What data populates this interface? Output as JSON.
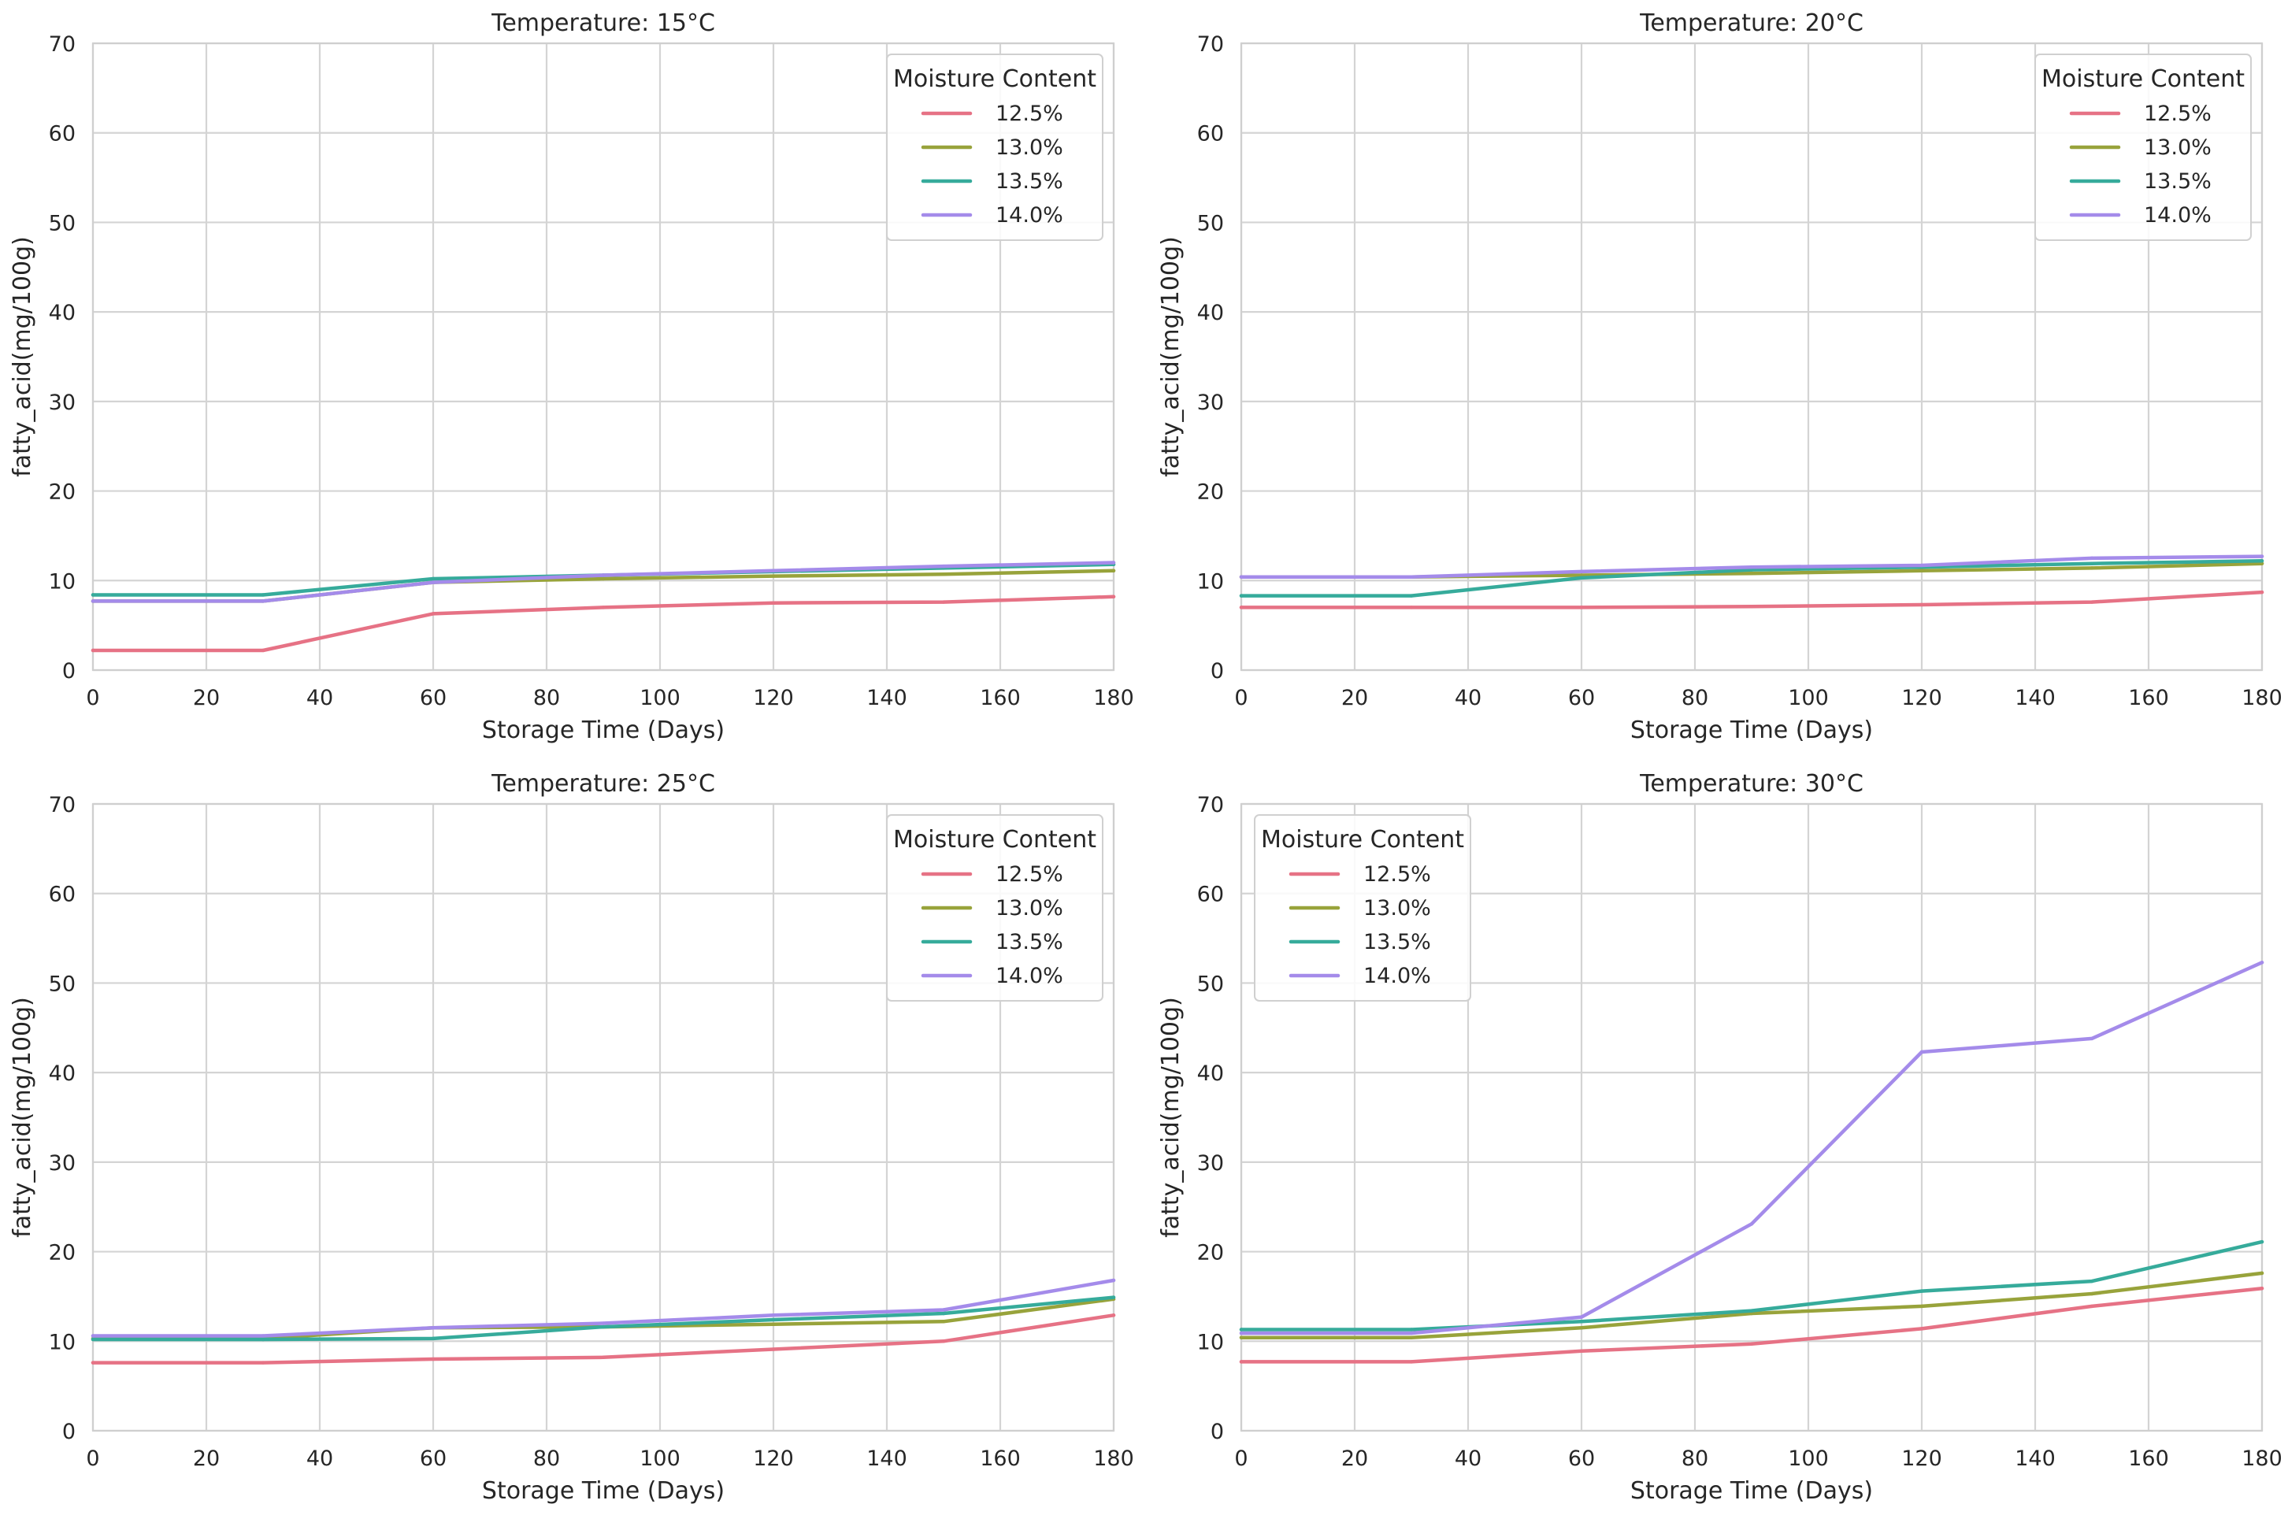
{
  "palette": {
    "12.5%": "#e67285",
    "13.0%": "#98a33b",
    "13.5%": "#36ab9b",
    "14.0%": "#a48bea"
  },
  "chart_data": [
    {
      "type": "line",
      "title": "Temperature: 15°C",
      "xlabel": "Storage Time (Days)",
      "ylabel": "fatty_acid(mg/100g)",
      "xlim": [
        0,
        180
      ],
      "ylim": [
        0,
        70
      ],
      "xticks": [
        0,
        20,
        40,
        60,
        80,
        100,
        120,
        140,
        160,
        180
      ],
      "yticks": [
        0,
        10,
        20,
        30,
        40,
        50,
        60,
        70
      ],
      "grid": true,
      "legend_title": "Moisture Content",
      "legend_position": "top-right",
      "x": [
        0,
        30,
        60,
        90,
        120,
        150,
        180
      ],
      "series": [
        {
          "name": "12.5%",
          "values": [
            2.2,
            2.2,
            6.3,
            7.0,
            7.5,
            7.6,
            8.2
          ]
        },
        {
          "name": "13.0%",
          "values": [
            7.7,
            7.7,
            9.8,
            10.2,
            10.5,
            10.7,
            11.1
          ]
        },
        {
          "name": "13.5%",
          "values": [
            8.4,
            8.4,
            10.2,
            10.6,
            11.0,
            11.4,
            11.8
          ]
        },
        {
          "name": "14.0%",
          "values": [
            7.7,
            7.7,
            9.8,
            10.6,
            11.1,
            11.6,
            12.0
          ]
        }
      ]
    },
    {
      "type": "line",
      "title": "Temperature: 20°C",
      "xlabel": "Storage Time (Days)",
      "ylabel": "fatty_acid(mg/100g)",
      "xlim": [
        0,
        180
      ],
      "ylim": [
        0,
        70
      ],
      "xticks": [
        0,
        20,
        40,
        60,
        80,
        100,
        120,
        140,
        160,
        180
      ],
      "yticks": [
        0,
        10,
        20,
        30,
        40,
        50,
        60,
        70
      ],
      "grid": true,
      "legend_title": "Moisture Content",
      "legend_position": "top-right",
      "x": [
        0,
        30,
        60,
        90,
        120,
        150,
        180
      ],
      "series": [
        {
          "name": "12.5%",
          "values": [
            7.0,
            7.0,
            7.0,
            7.1,
            7.3,
            7.6,
            8.7
          ]
        },
        {
          "name": "13.0%",
          "values": [
            10.4,
            10.4,
            10.6,
            10.8,
            11.1,
            11.4,
            11.9
          ]
        },
        {
          "name": "13.5%",
          "values": [
            8.3,
            8.3,
            10.3,
            11.2,
            11.5,
            11.9,
            12.2
          ]
        },
        {
          "name": "14.0%",
          "values": [
            10.4,
            10.4,
            11.0,
            11.5,
            11.7,
            12.5,
            12.7
          ]
        }
      ]
    },
    {
      "type": "line",
      "title": "Temperature: 25°C",
      "xlabel": "Storage Time (Days)",
      "ylabel": "fatty_acid(mg/100g)",
      "xlim": [
        0,
        180
      ],
      "ylim": [
        0,
        70
      ],
      "xticks": [
        0,
        20,
        40,
        60,
        80,
        100,
        120,
        140,
        160,
        180
      ],
      "yticks": [
        0,
        10,
        20,
        30,
        40,
        50,
        60,
        70
      ],
      "grid": true,
      "legend_title": "Moisture Content",
      "legend_position": "top-right",
      "x": [
        0,
        30,
        60,
        90,
        120,
        150,
        180
      ],
      "series": [
        {
          "name": "12.5%",
          "values": [
            7.6,
            7.6,
            8.0,
            8.2,
            9.1,
            10.0,
            12.9
          ]
        },
        {
          "name": "13.0%",
          "values": [
            10.3,
            10.3,
            11.5,
            11.6,
            11.9,
            12.2,
            14.7
          ]
        },
        {
          "name": "13.5%",
          "values": [
            10.2,
            10.2,
            10.3,
            11.6,
            12.4,
            13.1,
            14.9
          ]
        },
        {
          "name": "14.0%",
          "values": [
            10.6,
            10.6,
            11.5,
            12.0,
            12.9,
            13.5,
            16.8
          ]
        }
      ]
    },
    {
      "type": "line",
      "title": "Temperature: 30°C",
      "xlabel": "Storage Time (Days)",
      "ylabel": "fatty_acid(mg/100g)",
      "xlim": [
        0,
        180
      ],
      "ylim": [
        0,
        70
      ],
      "xticks": [
        0,
        20,
        40,
        60,
        80,
        100,
        120,
        140,
        160,
        180
      ],
      "yticks": [
        0,
        10,
        20,
        30,
        40,
        50,
        60,
        70
      ],
      "grid": true,
      "legend_title": "Moisture Content",
      "legend_position": "top-left",
      "x": [
        0,
        30,
        60,
        90,
        120,
        150,
        180
      ],
      "series": [
        {
          "name": "12.5%",
          "values": [
            7.7,
            7.7,
            8.9,
            9.7,
            11.4,
            13.9,
            15.9
          ]
        },
        {
          "name": "13.0%",
          "values": [
            10.4,
            10.4,
            11.5,
            13.1,
            13.9,
            15.3,
            17.6
          ]
        },
        {
          "name": "13.5%",
          "values": [
            11.3,
            11.3,
            12.2,
            13.4,
            15.6,
            16.7,
            21.1
          ]
        },
        {
          "name": "14.0%",
          "values": [
            10.9,
            10.9,
            12.7,
            23.1,
            42.3,
            43.8,
            52.3
          ]
        }
      ]
    }
  ]
}
